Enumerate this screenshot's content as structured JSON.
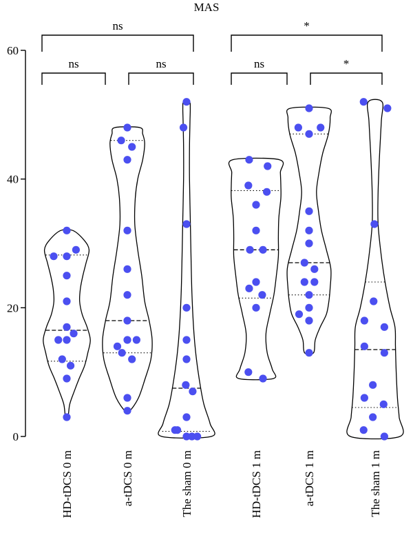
{
  "chart_data": {
    "type": "violin",
    "title": "MAS",
    "ylim": [
      0,
      60
    ],
    "yticks": [
      0,
      20,
      40,
      60
    ],
    "categories": [
      "HD-tDCS 0 m",
      "a-tDCS 0 m",
      "The sham 0 m",
      "HD-tDCS 1 m",
      "a-tDCS 1 m",
      "The sham 1 m"
    ],
    "groups": [
      {
        "category": "HD-tDCS 0 m",
        "min": 3,
        "max": 32,
        "median": 16.5,
        "q1": 11.7,
        "q3": 28.2,
        "points": [
          {
            "dx": 0.0,
            "y": 32
          },
          {
            "dx": -0.85,
            "y": 28
          },
          {
            "dx": 0.0,
            "y": 28
          },
          {
            "dx": 0.6,
            "y": 29
          },
          {
            "dx": 0.0,
            "y": 25
          },
          {
            "dx": 0.0,
            "y": 21
          },
          {
            "dx": 0.0,
            "y": 17
          },
          {
            "dx": 0.45,
            "y": 16
          },
          {
            "dx": -0.55,
            "y": 15
          },
          {
            "dx": 0.0,
            "y": 15
          },
          {
            "dx": -0.3,
            "y": 12
          },
          {
            "dx": 0.25,
            "y": 11
          },
          {
            "dx": 0.0,
            "y": 9
          },
          {
            "dx": 0.0,
            "y": 3
          }
        ],
        "shape": [
          [
            3,
            0.05
          ],
          [
            5,
            0.12
          ],
          [
            7,
            0.3
          ],
          [
            9,
            0.5
          ],
          [
            11,
            0.72
          ],
          [
            13,
            0.85
          ],
          [
            15,
            0.95
          ],
          [
            17,
            0.82
          ],
          [
            19,
            0.62
          ],
          [
            21,
            0.52
          ],
          [
            23,
            0.55
          ],
          [
            25,
            0.65
          ],
          [
            27,
            0.78
          ],
          [
            29,
            0.9
          ],
          [
            30.5,
            0.7
          ],
          [
            32,
            0.25
          ]
        ]
      },
      {
        "category": "a-tDCS 0 m",
        "min": 4,
        "max": 48,
        "median": 18,
        "q1": 13,
        "q3": 46,
        "points": [
          {
            "dx": 0.0,
            "y": 48
          },
          {
            "dx": -0.4,
            "y": 46
          },
          {
            "dx": 0.3,
            "y": 45
          },
          {
            "dx": 0.0,
            "y": 43
          },
          {
            "dx": 0.0,
            "y": 32
          },
          {
            "dx": 0.0,
            "y": 26
          },
          {
            "dx": 0.0,
            "y": 22
          },
          {
            "dx": 0.0,
            "y": 18
          },
          {
            "dx": -0.65,
            "y": 14
          },
          {
            "dx": 0.0,
            "y": 15
          },
          {
            "dx": 0.6,
            "y": 15
          },
          {
            "dx": -0.35,
            "y": 13
          },
          {
            "dx": 0.3,
            "y": 12
          },
          {
            "dx": 0.0,
            "y": 6
          },
          {
            "dx": 0.0,
            "y": 4
          }
        ],
        "shape": [
          [
            4,
            0.1
          ],
          [
            6,
            0.45
          ],
          [
            9,
            0.72
          ],
          [
            12,
            0.95
          ],
          [
            15,
            1.0
          ],
          [
            18,
            0.88
          ],
          [
            21,
            0.7
          ],
          [
            25,
            0.58
          ],
          [
            29,
            0.42
          ],
          [
            33,
            0.3
          ],
          [
            37,
            0.32
          ],
          [
            40,
            0.42
          ],
          [
            43,
            0.62
          ],
          [
            45.5,
            0.7
          ],
          [
            47,
            0.62
          ],
          [
            48,
            0.5
          ]
        ]
      },
      {
        "category": "The sham 0 m",
        "min": 0,
        "max": 52,
        "median": 7.5,
        "q1": 0.8,
        "q3": 33,
        "points": [
          {
            "dx": 0.0,
            "y": 52
          },
          {
            "dx": -0.2,
            "y": 48
          },
          {
            "dx": 0.0,
            "y": 33
          },
          {
            "dx": 0.0,
            "y": 20
          },
          {
            "dx": 0.0,
            "y": 15
          },
          {
            "dx": 0.0,
            "y": 12
          },
          {
            "dx": -0.05,
            "y": 8
          },
          {
            "dx": 0.4,
            "y": 7
          },
          {
            "dx": 0.0,
            "y": 3
          },
          {
            "dx": -0.75,
            "y": 1
          },
          {
            "dx": -0.6,
            "y": 1
          },
          {
            "dx": 0.0,
            "y": 0
          },
          {
            "dx": 0.35,
            "y": 0
          },
          {
            "dx": 0.7,
            "y": 0
          }
        ],
        "shape": [
          [
            0,
            1.0
          ],
          [
            2,
            0.95
          ],
          [
            5,
            0.7
          ],
          [
            8,
            0.55
          ],
          [
            12,
            0.4
          ],
          [
            16,
            0.3
          ],
          [
            22,
            0.22
          ],
          [
            28,
            0.18
          ],
          [
            34,
            0.15
          ],
          [
            40,
            0.12
          ],
          [
            45,
            0.12
          ],
          [
            49,
            0.14
          ],
          [
            51,
            0.15
          ],
          [
            52,
            0.12
          ]
        ]
      },
      {
        "category": "HD-tDCS 1 m",
        "min": 9,
        "max": 43,
        "median": 29,
        "q1": 21.5,
        "q3": 38.2,
        "points": [
          {
            "dx": -0.45,
            "y": 43
          },
          {
            "dx": 0.75,
            "y": 42
          },
          {
            "dx": -0.5,
            "y": 39
          },
          {
            "dx": 0.7,
            "y": 38
          },
          {
            "dx": 0.0,
            "y": 36
          },
          {
            "dx": 0.0,
            "y": 32
          },
          {
            "dx": -0.4,
            "y": 29
          },
          {
            "dx": 0.45,
            "y": 29
          },
          {
            "dx": 0.0,
            "y": 24
          },
          {
            "dx": -0.45,
            "y": 23
          },
          {
            "dx": 0.4,
            "y": 22
          },
          {
            "dx": 0.0,
            "y": 20
          },
          {
            "dx": -0.5,
            "y": 10
          },
          {
            "dx": 0.45,
            "y": 9
          }
        ],
        "shape": [
          [
            9,
            0.7
          ],
          [
            10.5,
            0.65
          ],
          [
            13,
            0.45
          ],
          [
            16,
            0.4
          ],
          [
            19,
            0.55
          ],
          [
            22,
            0.72
          ],
          [
            25,
            0.82
          ],
          [
            28,
            0.9
          ],
          [
            31,
            0.9
          ],
          [
            34,
            0.92
          ],
          [
            37,
            1.0
          ],
          [
            39,
            1.0
          ],
          [
            41,
            0.98
          ],
          [
            43,
            0.95
          ]
        ]
      },
      {
        "category": "a-tDCS 1 m",
        "min": 13,
        "max": 51,
        "median": 27,
        "q1": 22,
        "q3": 47,
        "points": [
          {
            "dx": 0.0,
            "y": 51
          },
          {
            "dx": -0.7,
            "y": 48
          },
          {
            "dx": 0.75,
            "y": 48
          },
          {
            "dx": 0.0,
            "y": 47
          },
          {
            "dx": 0.0,
            "y": 35
          },
          {
            "dx": 0.0,
            "y": 32
          },
          {
            "dx": 0.0,
            "y": 30
          },
          {
            "dx": -0.3,
            "y": 27
          },
          {
            "dx": 0.35,
            "y": 26
          },
          {
            "dx": -0.3,
            "y": 24
          },
          {
            "dx": 0.35,
            "y": 24
          },
          {
            "dx": 0.0,
            "y": 22
          },
          {
            "dx": 0.0,
            "y": 20
          },
          {
            "dx": -0.65,
            "y": 19
          },
          {
            "dx": 0.0,
            "y": 18
          },
          {
            "dx": 0.0,
            "y": 13
          }
        ],
        "shape": [
          [
            13,
            0.18
          ],
          [
            15,
            0.25
          ],
          [
            17,
            0.45
          ],
          [
            19,
            0.7
          ],
          [
            21,
            0.8
          ],
          [
            23,
            0.85
          ],
          [
            26,
            0.88
          ],
          [
            29,
            0.7
          ],
          [
            32,
            0.5
          ],
          [
            35,
            0.38
          ],
          [
            38,
            0.3
          ],
          [
            41,
            0.4
          ],
          [
            44,
            0.55
          ],
          [
            47,
            0.78
          ],
          [
            49.5,
            0.85
          ],
          [
            51,
            0.75
          ]
        ]
      },
      {
        "category": "The sham 1 m",
        "min": 0,
        "max": 52,
        "median": 13.5,
        "q1": 4.5,
        "q3": 24,
        "points": [
          {
            "dx": -0.75,
            "y": 52
          },
          {
            "dx": 0.8,
            "y": 51
          },
          {
            "dx": -0.05,
            "y": 33
          },
          {
            "dx": -0.1,
            "y": 21
          },
          {
            "dx": -0.7,
            "y": 18
          },
          {
            "dx": 0.6,
            "y": 17
          },
          {
            "dx": -0.7,
            "y": 14
          },
          {
            "dx": 0.6,
            "y": 13
          },
          {
            "dx": -0.15,
            "y": 8
          },
          {
            "dx": -0.7,
            "y": 6
          },
          {
            "dx": 0.55,
            "y": 5
          },
          {
            "dx": -0.15,
            "y": 3
          },
          {
            "dx": -0.75,
            "y": 1
          },
          {
            "dx": 0.6,
            "y": 0
          }
        ],
        "shape": [
          [
            0,
            1.0
          ],
          [
            3,
            0.97
          ],
          [
            6,
            0.9
          ],
          [
            10,
            0.85
          ],
          [
            14,
            0.82
          ],
          [
            17,
            0.8
          ],
          [
            20,
            0.6
          ],
          [
            24,
            0.4
          ],
          [
            28,
            0.25
          ],
          [
            33,
            0.12
          ],
          [
            38,
            0.12
          ],
          [
            44,
            0.18
          ],
          [
            49,
            0.25
          ],
          [
            52,
            0.28
          ]
        ]
      }
    ],
    "comparisons": [
      {
        "from": 0,
        "to": 1,
        "label": "ns",
        "level": 1
      },
      {
        "from": 1,
        "to": 2,
        "label": "ns",
        "level": 1
      },
      {
        "from": 0,
        "to": 2,
        "label": "ns",
        "level": 2
      },
      {
        "from": 3,
        "to": 4,
        "label": "ns",
        "level": 1
      },
      {
        "from": 4,
        "to": 5,
        "label": "*",
        "level": 1
      },
      {
        "from": 3,
        "to": 5,
        "label": "*",
        "level": 2
      }
    ],
    "colors": {
      "points": "#4b4ff0",
      "outline": "#000000"
    }
  }
}
